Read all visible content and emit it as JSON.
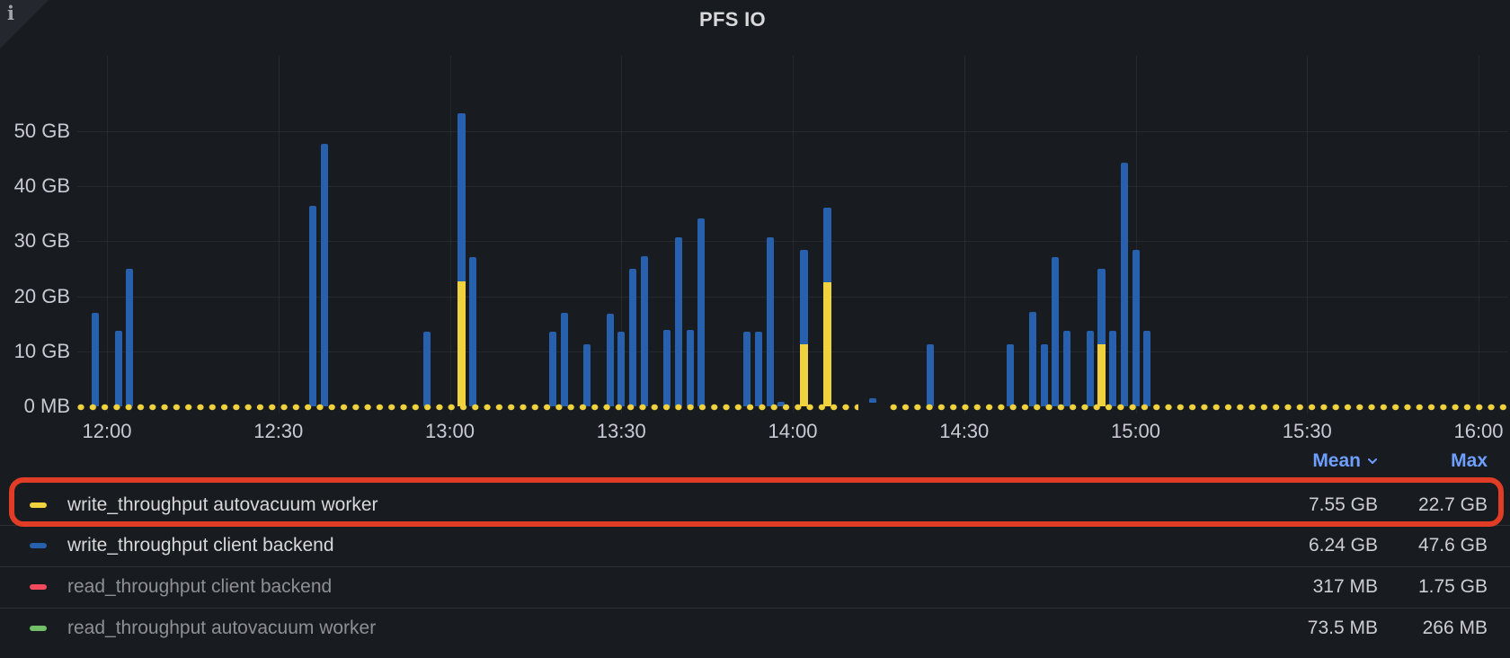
{
  "panel": {
    "title": "PFS IO",
    "info_icon": "i"
  },
  "chart_data": {
    "type": "bar",
    "stacked": true,
    "unit": "bytes-throughput",
    "title": "PFS IO",
    "x_ticks": [
      "12:00",
      "12:30",
      "13:00",
      "13:30",
      "14:00",
      "14:30",
      "15:00",
      "15:30",
      "16:00"
    ],
    "y_ticks": [
      "0 MB",
      "10 GB",
      "20 GB",
      "30 GB",
      "40 GB",
      "50 GB"
    ],
    "ylim_gb": [
      0,
      55
    ],
    "grid": true,
    "series_colors": {
      "write_throughput_client_backend": "#2760AC",
      "write_throughput_autovacuum_worker": "#EFD23D"
    },
    "bars_gb": [
      {
        "t": "11:58",
        "client_backend": 17.0
      },
      {
        "t": "12:02",
        "client_backend": 13.7
      },
      {
        "t": "12:04",
        "client_backend": 25.0
      },
      {
        "t": "12:36",
        "client_backend": 36.4
      },
      {
        "t": "12:38",
        "client_backend": 47.6
      },
      {
        "t": "12:56",
        "client_backend": 13.6
      },
      {
        "t": "13:02",
        "client_backend": 30.5,
        "autovacuum": 22.7
      },
      {
        "t": "13:04",
        "client_backend": 27.1
      },
      {
        "t": "13:18",
        "client_backend": 13.6
      },
      {
        "t": "13:20",
        "client_backend": 17.0
      },
      {
        "t": "13:24",
        "client_backend": 11.3
      },
      {
        "t": "13:28",
        "client_backend": 16.8
      },
      {
        "t": "13:30",
        "client_backend": 13.6
      },
      {
        "t": "13:32",
        "client_backend": 25.0
      },
      {
        "t": "13:34",
        "client_backend": 27.3
      },
      {
        "t": "13:38",
        "client_backend": 13.9
      },
      {
        "t": "13:40",
        "client_backend": 30.7
      },
      {
        "t": "13:42",
        "client_backend": 13.9
      },
      {
        "t": "13:44",
        "client_backend": 34.1
      },
      {
        "t": "13:52",
        "client_backend": 13.6
      },
      {
        "t": "13:54",
        "client_backend": 13.6
      },
      {
        "t": "13:56",
        "client_backend": 30.7
      },
      {
        "t": "13:58",
        "client_backend": 0.8
      },
      {
        "t": "14:02",
        "client_backend": 17.1,
        "autovacuum": 11.3
      },
      {
        "t": "14:06",
        "client_backend": 13.5,
        "autovacuum": 22.6
      },
      {
        "t": "14:14",
        "client_backend": 1.5
      },
      {
        "t": "14:24",
        "client_backend": 11.3
      },
      {
        "t": "14:38",
        "client_backend": 11.3
      },
      {
        "t": "14:42",
        "client_backend": 17.1
      },
      {
        "t": "14:44",
        "client_backend": 11.3
      },
      {
        "t": "14:46",
        "client_backend": 27.1
      },
      {
        "t": "14:48",
        "client_backend": 13.7
      },
      {
        "t": "14:52",
        "client_backend": 13.7
      },
      {
        "t": "14:54",
        "client_backend": 13.7,
        "autovacuum": 11.3
      },
      {
        "t": "14:56",
        "client_backend": 13.7
      },
      {
        "t": "14:58",
        "client_backend": 44.2
      },
      {
        "t": "15:00",
        "client_backend": 28.4
      },
      {
        "t": "15:02",
        "client_backend": 13.7
      }
    ],
    "zero_value_line_series": "write_throughput autovacuum worker",
    "zero_line_gaps": [
      {
        "from": "14:12",
        "to": "14:16"
      }
    ],
    "legend_position": "bottom"
  },
  "legend": {
    "columns": [
      "Mean",
      "Max"
    ],
    "sorted_by": "Mean",
    "rows": [
      {
        "label": "write_throughput autovacuum worker",
        "color": "#EFD23D",
        "mean": "7.55 GB",
        "max": "22.7 GB",
        "dimmed": false,
        "highlighted": true
      },
      {
        "label": "write_throughput client backend",
        "color": "#2760AC",
        "mean": "6.24 GB",
        "max": "47.6 GB",
        "dimmed": false,
        "highlighted": false
      },
      {
        "label": "read_throughput client backend",
        "color": "#F2495C",
        "mean": "317 MB",
        "max": "1.75 GB",
        "dimmed": true,
        "highlighted": false
      },
      {
        "label": "read_throughput autovacuum worker",
        "color": "#73BF69",
        "mean": "73.5 MB",
        "max": "266 MB",
        "dimmed": true,
        "highlighted": false
      }
    ]
  },
  "annotation": {
    "type": "highlight-box",
    "color": "#E13C25",
    "target_row": "write_throughput autovacuum worker"
  },
  "colors": {
    "background": "#181B1F",
    "text_primary": "#D8D9DA",
    "text_axis": "#C9CAD3",
    "text_dimmed": "#8E9095",
    "header_link_blue": "#6E9FFF",
    "grid": "rgba(204,204,220,0.08)"
  }
}
